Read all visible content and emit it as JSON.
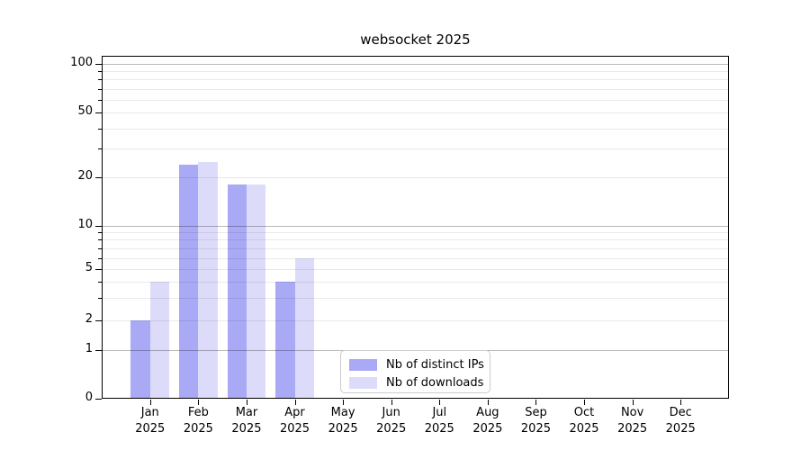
{
  "page_title": "websocket 2025",
  "chart_data": {
    "type": "bar",
    "title": "websocket 2025",
    "categories": [
      "Jan",
      "Feb",
      "Mar",
      "Apr",
      "May",
      "Jun",
      "Jul",
      "Aug",
      "Sep",
      "Oct",
      "Nov",
      "Dec"
    ],
    "category_sublabel": "2025",
    "series": [
      {
        "name": "Nb of distinct IPs",
        "color": "#a9a9f5",
        "values": [
          2,
          24,
          18,
          4,
          0,
          0,
          0,
          0,
          0,
          0,
          0,
          0
        ]
      },
      {
        "name": "Nb of downloads",
        "color": "#dcdcfa",
        "values": [
          4,
          25,
          18,
          6,
          0,
          0,
          0,
          0,
          0,
          0,
          0,
          0
        ]
      }
    ],
    "yscale": "log-like",
    "ytick_labels": [
      0,
      1,
      2,
      5,
      10,
      20,
      50,
      100
    ],
    "major_gridlines": [
      1,
      10,
      100
    ],
    "minor_gridlines": [
      2,
      3,
      4,
      5,
      6,
      7,
      8,
      9,
      20,
      30,
      40,
      50,
      60,
      70,
      80,
      90
    ],
    "ylim": [
      0,
      120
    ],
    "grid": true,
    "legend": {
      "entries": [
        "Nb of distinct IPs",
        "Nb of downloads"
      ],
      "position": "lower-center-left-inside"
    },
    "scale_anchors": [
      [
        0,
        0
      ],
      [
        1,
        0.1417
      ],
      [
        2,
        0.2291
      ],
      [
        5,
        0.3772
      ],
      [
        10,
        0.5047
      ],
      [
        20,
        0.6457
      ],
      [
        50,
        0.8338
      ],
      [
        100,
        0.9764
      ]
    ],
    "colors": {
      "major_grid": "rgba(0,0,0,0.28)",
      "minor_grid": "rgba(0,0,0,0.085)",
      "axis": "#000000",
      "background": "#ffffff"
    }
  }
}
